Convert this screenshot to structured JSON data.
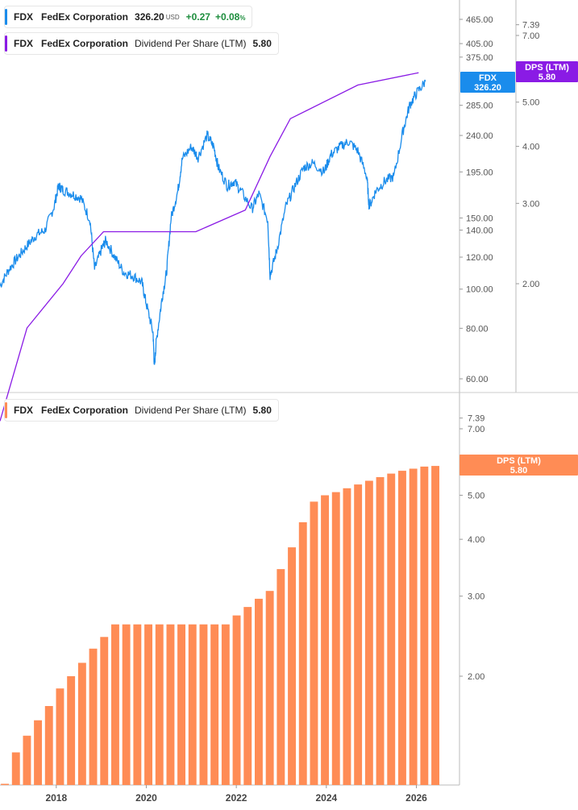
{
  "legend_top_price": {
    "symbol": "FDX",
    "name": "FedEx Corporation",
    "price": "326.20",
    "currency": "USD",
    "change": "+0.27",
    "change_pct": "+0.08",
    "pct_sign": "%",
    "color": "#1a8cec"
  },
  "legend_top_dps": {
    "symbol": "FDX",
    "name": "FedEx Corporation",
    "metric": "Dividend Per Share (LTM)",
    "value": "5.80",
    "color": "#8a1be5"
  },
  "legend_bottom": {
    "symbol": "FDX",
    "name": "FedEx Corporation",
    "metric": "Dividend Per Share (LTM)",
    "value": "5.80",
    "color": "#ff8c55"
  },
  "badges": {
    "price": {
      "line1": "FDX",
      "line2": "326.20",
      "color": "#1a8cec"
    },
    "dps_top": {
      "line1": "DPS (LTM)",
      "line2": "5.80",
      "color": "#8a1be5"
    },
    "dps_bottom": {
      "line1": "DPS (LTM)",
      "line2": "5.80",
      "color": "#ff8c55"
    }
  },
  "chart_data": [
    {
      "type": "line",
      "scale": "log",
      "price_axis_ticks": [
        "465.00",
        "405.00",
        "375.00",
        "285.00",
        "240.00",
        "195.00",
        "150.00",
        "140.00",
        "120.00",
        "100.00",
        "80.00",
        "60.00"
      ],
      "dps_axis_ticks": [
        "7.39",
        "7.00",
        "5.00",
        "4.00",
        "3.00",
        "2.00"
      ],
      "series": [
        {
          "axis": "price",
          "points": [
            [
              2016.75,
              102
            ],
            [
              2016.95,
              112
            ],
            [
              2017.15,
              120
            ],
            [
              2017.35,
              128
            ],
            [
              2017.55,
              136
            ],
            [
              2017.75,
              140
            ],
            [
              2017.95,
              160
            ],
            [
              2018.05,
              180
            ],
            [
              2018.15,
              176
            ],
            [
              2018.35,
              172
            ],
            [
              2018.55,
              168
            ],
            [
              2018.75,
              148
            ],
            [
              2018.85,
              112
            ],
            [
              2019.0,
              125
            ],
            [
              2019.1,
              132
            ],
            [
              2019.3,
              120
            ],
            [
              2019.5,
              110
            ],
            [
              2019.7,
              108
            ],
            [
              2019.9,
              104
            ],
            [
              2020.0,
              92
            ],
            [
              2020.15,
              78
            ],
            [
              2020.18,
              64
            ],
            [
              2020.22,
              74
            ],
            [
              2020.35,
              95
            ],
            [
              2020.45,
              110
            ],
            [
              2020.55,
              150
            ],
            [
              2020.7,
              175
            ],
            [
              2020.8,
              210
            ],
            [
              2021.0,
              225
            ],
            [
              2021.15,
              212
            ],
            [
              2021.35,
              240
            ],
            [
              2021.5,
              225
            ],
            [
              2021.6,
              200
            ],
            [
              2021.8,
              180
            ],
            [
              2021.95,
              185
            ],
            [
              2022.1,
              175
            ],
            [
              2022.35,
              158
            ],
            [
              2022.5,
              172
            ],
            [
              2022.7,
              148
            ],
            [
              2022.75,
              108
            ],
            [
              2022.9,
              125
            ],
            [
              2023.1,
              160
            ],
            [
              2023.3,
              180
            ],
            [
              2023.5,
              200
            ],
            [
              2023.7,
              205
            ],
            [
              2023.95,
              195
            ],
            [
              2024.1,
              215
            ],
            [
              2024.3,
              225
            ],
            [
              2024.5,
              232
            ],
            [
              2024.7,
              220
            ],
            [
              2024.9,
              190
            ],
            [
              2024.95,
              160
            ],
            [
              2025.1,
              175
            ],
            [
              2025.3,
              185
            ],
            [
              2025.5,
              190
            ],
            [
              2025.7,
              245
            ],
            [
              2025.85,
              285
            ],
            [
              2026.0,
              305
            ],
            [
              2026.2,
              326.2
            ]
          ]
        },
        {
          "axis": "dps",
          "points": [
            [
              2016.75,
              1.0
            ],
            [
              2017.35,
              1.6
            ],
            [
              2018.15,
              2.0
            ],
            [
              2018.55,
              2.3
            ],
            [
              2019.05,
              2.6
            ],
            [
              2021.1,
              2.6
            ],
            [
              2022.2,
              2.9
            ],
            [
              2022.75,
              3.8
            ],
            [
              2023.2,
              4.6
            ],
            [
              2024.7,
              5.45
            ],
            [
              2026.05,
              5.8
            ]
          ]
        }
      ]
    },
    {
      "type": "bar",
      "scale": "log",
      "axis_ticks": [
        "7.39",
        "7.00",
        "5.00",
        "4.00",
        "3.00",
        "2.00"
      ],
      "x_ticks": [
        "2018",
        "2020",
        "2022",
        "2024",
        "2026"
      ],
      "values": [
        1.16,
        1.36,
        1.48,
        1.6,
        1.72,
        1.88,
        2.0,
        2.14,
        2.3,
        2.44,
        2.6,
        2.6,
        2.6,
        2.6,
        2.6,
        2.6,
        2.6,
        2.6,
        2.6,
        2.6,
        2.6,
        2.72,
        2.84,
        2.96,
        3.08,
        3.44,
        3.84,
        4.36,
        4.84,
        5.0,
        5.08,
        5.18,
        5.28,
        5.38,
        5.48,
        5.58,
        5.66,
        5.72,
        5.78,
        5.8
      ]
    }
  ]
}
